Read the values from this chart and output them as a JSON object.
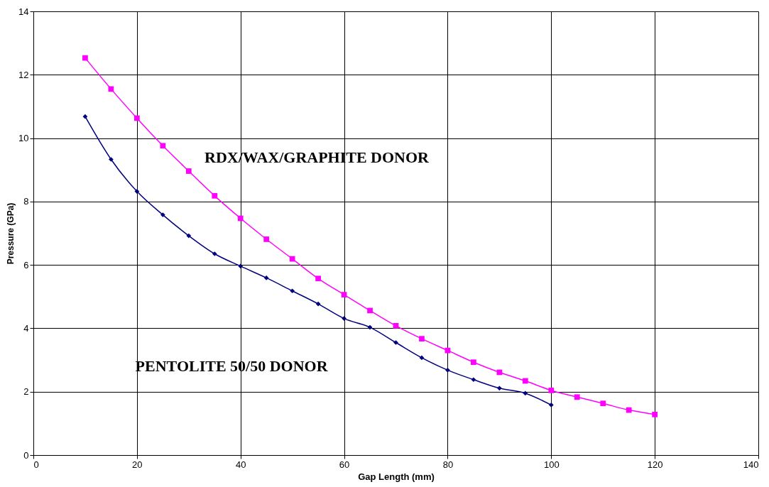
{
  "chart_data": {
    "type": "line",
    "xlabel": "Gap Length (mm)",
    "ylabel": "Pressure (GPa)",
    "xlim": [
      0,
      140
    ],
    "xticks": [
      0,
      20,
      40,
      60,
      80,
      100,
      120,
      140
    ],
    "ylim": [
      0,
      14
    ],
    "yticks": [
      0,
      2,
      4,
      6,
      8,
      10,
      12,
      14
    ],
    "grid": true,
    "line_style": "solid",
    "series": [
      {
        "name": "RDX/WAX/GRAPHITE DONOR",
        "color": "#ff00ff",
        "marker": "square",
        "x": [
          10,
          15,
          20,
          25,
          30,
          35,
          40,
          45,
          50,
          55,
          60,
          65,
          70,
          75,
          80,
          85,
          90,
          95,
          100,
          105,
          110,
          115,
          120
        ],
        "values": [
          12.53,
          11.55,
          10.63,
          9.76,
          8.96,
          8.18,
          7.47,
          6.81,
          6.19,
          5.57,
          5.06,
          4.56,
          4.08,
          3.67,
          3.3,
          2.93,
          2.61,
          2.34,
          2.04,
          1.83,
          1.63,
          1.42,
          1.28
        ]
      },
      {
        "name": "PENTOLITE 50/50 DONOR",
        "color": "#000080",
        "marker": "diamond",
        "x": [
          10,
          15,
          20,
          25,
          30,
          35,
          40,
          45,
          50,
          55,
          60,
          65,
          70,
          75,
          80,
          85,
          90,
          95,
          100
        ],
        "values": [
          10.68,
          9.33,
          8.32,
          7.58,
          6.92,
          6.35,
          5.96,
          5.59,
          5.18,
          4.77,
          4.31,
          4.03,
          3.55,
          3.07,
          2.68,
          2.38,
          2.11,
          1.95,
          1.58
        ]
      }
    ]
  }
}
